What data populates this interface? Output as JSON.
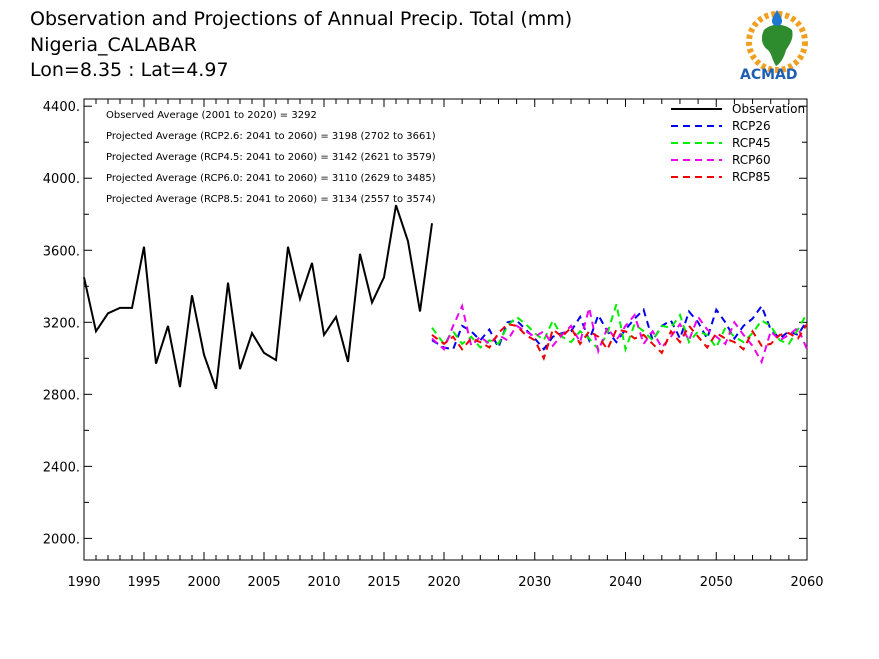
{
  "header": {
    "title_line1": "Observation and Projections of Annual Precip. Total (mm)",
    "title_line2": "Nigeria_CALABAR",
    "title_line3": "Lon=8.35 : Lat=4.97"
  },
  "logo": {
    "text": "ACMAD"
  },
  "notes": [
    "Observed Average (2001 to 2020) = 3292",
    "Projected Average (RCP2.6: 2041 to 2060) = 3198 (2702 to 3661)",
    "Projected Average (RCP4.5: 2041 to 2060) = 3142 (2621 to 3579)",
    "Projected Average (RCP6.0: 2041 to 2060) = 3110 (2629 to 3485)",
    "Projected Average (RCP8.5: 2041 to 2060) = 3134 (2557 to 3574)"
  ],
  "colors": {
    "Observation": "#000000",
    "RCP26": "#0000ee",
    "RCP45": "#00ee00",
    "RCP60": "#ee00ee",
    "RCP85": "#ee0000"
  },
  "chart_data": {
    "type": "line",
    "xlim": [
      1990,
      2060
    ],
    "ylim": [
      1880,
      4440
    ],
    "y_ticks": [
      2000,
      2400,
      2800,
      3200,
      3600,
      4000,
      4400
    ],
    "y_tick_labels": [
      "2000.",
      "2400.",
      "2800.",
      "3200.",
      "3600.",
      "4000.",
      "4400."
    ],
    "x_ticks_left": [
      1990,
      1995,
      2000,
      2005,
      2010,
      2015,
      2020
    ],
    "x_ticks_right": [
      2030,
      2040,
      2050,
      2060
    ],
    "x_tick_labels": [
      "1990",
      "1995",
      "2000",
      "2005",
      "2010",
      "2015",
      "2020",
      "2030",
      "2040",
      "2050",
      "2060"
    ],
    "legend": [
      "Observation",
      "RCP26",
      "RCP45",
      "RCP60",
      "RCP85"
    ],
    "legend_position": "top-right",
    "grid": false,
    "series": [
      {
        "name": "Observation",
        "x": [
          1990,
          1991,
          1992,
          1993,
          1994,
          1995,
          1996,
          1997,
          1998,
          1999,
          2000,
          2001,
          2002,
          2003,
          2004,
          2005,
          2006,
          2007,
          2008,
          2009,
          2010,
          2011,
          2012,
          2013,
          2014,
          2015,
          2016,
          2017,
          2018,
          2019
        ],
        "values": [
          3450,
          3150,
          3250,
          3280,
          3280,
          3620,
          2970,
          3180,
          2840,
          3350,
          3020,
          2830,
          3420,
          2940,
          3140,
          3030,
          2990,
          3620,
          3330,
          3530,
          3130,
          3230,
          2980,
          3580,
          3310,
          3450,
          3850,
          3650,
          3260,
          3750
        ]
      },
      {
        "name": "RCP26",
        "x": [
          2019,
          2020,
          2021,
          2022,
          2023,
          2024,
          2025,
          2026,
          2027,
          2028,
          2029,
          2030,
          2031,
          2032,
          2033,
          2034,
          2035,
          2036,
          2037,
          2038,
          2039,
          2040,
          2041,
          2042,
          2043,
          2044,
          2045,
          2046,
          2047,
          2048,
          2049,
          2050,
          2051,
          2052,
          2053,
          2054,
          2055,
          2056,
          2057,
          2058,
          2059,
          2060
        ],
        "values": [
          3100,
          3060,
          3050,
          3180,
          3150,
          3100,
          3160,
          3060,
          3200,
          3210,
          3160,
          3110,
          3050,
          3120,
          3140,
          3150,
          3230,
          3100,
          3240,
          3150,
          3090,
          3160,
          3220,
          3270,
          3100,
          3180,
          3210,
          3110,
          3260,
          3200,
          3110,
          3270,
          3200,
          3110,
          3180,
          3220,
          3290,
          3160,
          3110,
          3150,
          3130,
          3210
        ]
      },
      {
        "name": "RCP45",
        "x": [
          2019,
          2020,
          2021,
          2022,
          2023,
          2024,
          2025,
          2026,
          2027,
          2028,
          2029,
          2030,
          2031,
          2032,
          2033,
          2034,
          2035,
          2036,
          2037,
          2038,
          2039,
          2040,
          2041,
          2042,
          2043,
          2044,
          2045,
          2046,
          2047,
          2048,
          2049,
          2050,
          2051,
          2052,
          2053,
          2054,
          2055,
          2056,
          2057,
          2058,
          2059,
          2060
        ],
        "values": [
          3170,
          3080,
          3150,
          3080,
          3120,
          3060,
          3100,
          3080,
          3180,
          3230,
          3190,
          3140,
          3100,
          3210,
          3120,
          3090,
          3150,
          3110,
          3050,
          3140,
          3300,
          3050,
          3190,
          3150,
          3100,
          3180,
          3170,
          3240,
          3090,
          3150,
          3130,
          3060,
          3170,
          3120,
          3090,
          3140,
          3210,
          3180,
          3100,
          3080,
          3160,
          3250
        ]
      },
      {
        "name": "RCP60",
        "x": [
          2019,
          2020,
          2021,
          2022,
          2023,
          2024,
          2025,
          2026,
          2027,
          2028,
          2029,
          2030,
          2031,
          2032,
          2033,
          2034,
          2035,
          2036,
          2037,
          2038,
          2039,
          2040,
          2041,
          2042,
          2043,
          2044,
          2045,
          2046,
          2047,
          2048,
          2049,
          2050,
          2051,
          2052,
          2053,
          2054,
          2055,
          2056,
          2057,
          2058,
          2059,
          2060
        ],
        "values": [
          3110,
          3050,
          3180,
          3290,
          3070,
          3120,
          3080,
          3130,
          3100,
          3180,
          3150,
          3120,
          3150,
          3070,
          3130,
          3180,
          3090,
          3280,
          3040,
          3170,
          3100,
          3180,
          3240,
          3080,
          3150,
          3060,
          3120,
          3190,
          3100,
          3230,
          3160,
          3120,
          3080,
          3200,
          3130,
          3070,
          2980,
          3150,
          3100,
          3130,
          3170,
          3050
        ]
      },
      {
        "name": "RCP85",
        "x": [
          2019,
          2020,
          2021,
          2022,
          2023,
          2024,
          2025,
          2026,
          2027,
          2028,
          2029,
          2030,
          2031,
          2032,
          2033,
          2034,
          2035,
          2036,
          2037,
          2038,
          2039,
          2040,
          2041,
          2042,
          2043,
          2044,
          2045,
          2046,
          2047,
          2048,
          2049,
          2050,
          2051,
          2052,
          2053,
          2054,
          2055,
          2056,
          2057,
          2058,
          2059,
          2060
        ],
        "values": [
          3130,
          3080,
          3120,
          3050,
          3110,
          3090,
          3060,
          3140,
          3190,
          3180,
          3130,
          3100,
          3000,
          3160,
          3120,
          3170,
          3080,
          3150,
          3120,
          3050,
          3160,
          3150,
          3110,
          3130,
          3080,
          3030,
          3150,
          3090,
          3180,
          3120,
          3060,
          3140,
          3110,
          3090,
          3050,
          3150,
          3070,
          3080,
          3130,
          3140,
          3110,
          3190
        ]
      }
    ]
  }
}
